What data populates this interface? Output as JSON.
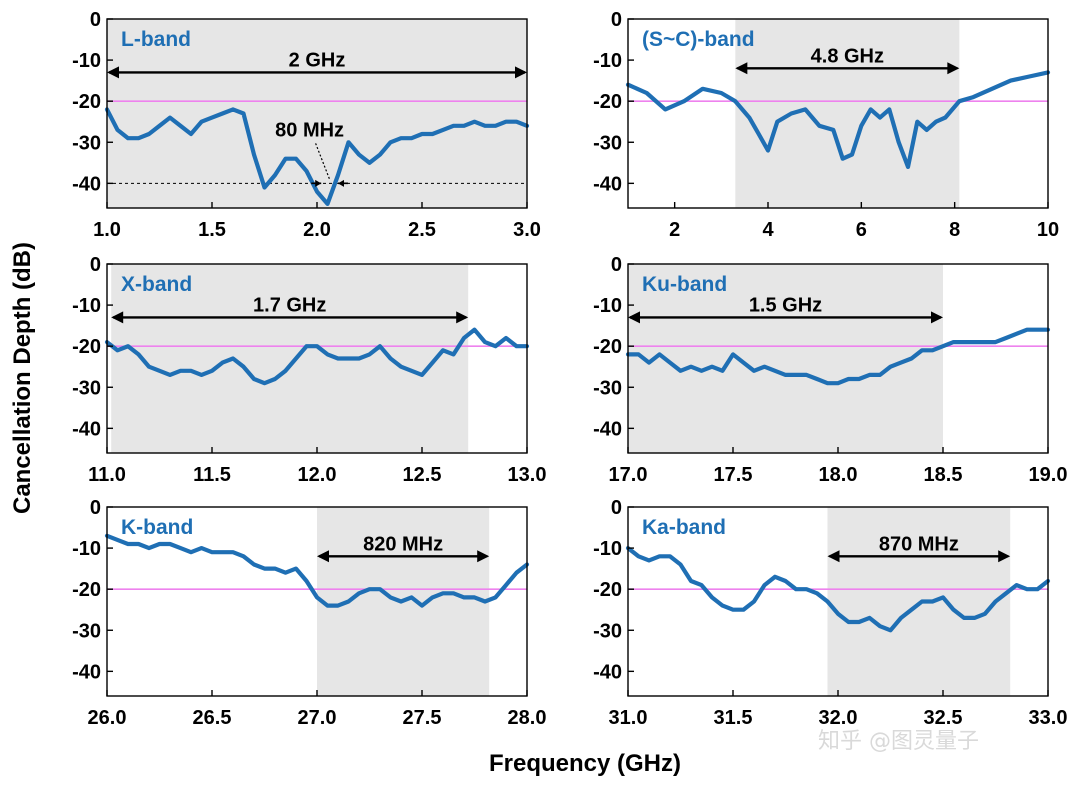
{
  "figure": {
    "ylabel": "Cancellation Depth (dB)",
    "xlabel": "Frequency (GHz)",
    "watermark": "知乎 @图灵量子",
    "colors": {
      "curve": "#1f6fb4",
      "threshold": "#ee82ee",
      "shade": "#e6e6e6",
      "title": "#1f6fb4"
    }
  },
  "chart_data": [
    {
      "type": "line",
      "title": "L-band",
      "xlim": [
        1.0,
        3.0
      ],
      "ylim": [
        -46,
        0
      ],
      "xticks": [
        1.0,
        1.5,
        2.0,
        2.5,
        3.0
      ],
      "xtick_labels": [
        "1.0",
        "1.5",
        "2.0",
        "2.5",
        "3.0"
      ],
      "yticks": [
        0,
        -10,
        -20,
        -30,
        -40
      ],
      "grid": false,
      "threshold": -20,
      "shade": [
        1.0,
        3.0
      ],
      "bandwidth_label": "2 GHz",
      "bandwidth_arrow": [
        1.0,
        3.0
      ],
      "bandwidth_arrow_y": -13,
      "secondary_label": "80 MHz",
      "secondary_arrow": [
        2.02,
        2.1
      ],
      "secondary_line_y": -40,
      "x": [
        1.0,
        1.05,
        1.1,
        1.15,
        1.2,
        1.25,
        1.3,
        1.35,
        1.4,
        1.45,
        1.5,
        1.55,
        1.6,
        1.65,
        1.7,
        1.75,
        1.8,
        1.85,
        1.9,
        1.95,
        2.0,
        2.05,
        2.1,
        2.15,
        2.2,
        2.25,
        2.3,
        2.35,
        2.4,
        2.45,
        2.5,
        2.55,
        2.6,
        2.65,
        2.7,
        2.75,
        2.8,
        2.85,
        2.9,
        2.95,
        3.0
      ],
      "values": [
        -22,
        -27,
        -29,
        -29,
        -28,
        -26,
        -24,
        -26,
        -28,
        -25,
        -24,
        -23,
        -22,
        -23,
        -33,
        -41,
        -38,
        -34,
        -34,
        -37,
        -42,
        -45,
        -38,
        -30,
        -33,
        -35,
        -33,
        -30,
        -29,
        -29,
        -28,
        -28,
        -27,
        -26,
        -26,
        -25,
        -26,
        -26,
        -25,
        -25,
        -26
      ]
    },
    {
      "type": "line",
      "title": "(S~C)-band",
      "xlim": [
        1,
        10
      ],
      "ylim": [
        -46,
        0
      ],
      "xticks": [
        2,
        4,
        6,
        8,
        10
      ],
      "xtick_labels": [
        "2",
        "4",
        "6",
        "8",
        "10"
      ],
      "yticks": [
        0,
        -10,
        -20,
        -30,
        -40
      ],
      "grid": false,
      "threshold": -20,
      "shade": [
        3.3,
        8.1
      ],
      "bandwidth_label": "4.8 GHz",
      "bandwidth_arrow": [
        3.3,
        8.1
      ],
      "bandwidth_arrow_y": -12,
      "x": [
        1.0,
        1.4,
        1.8,
        2.2,
        2.6,
        3.0,
        3.3,
        3.6,
        3.8,
        4.0,
        4.2,
        4.5,
        4.8,
        5.1,
        5.4,
        5.6,
        5.8,
        6.0,
        6.2,
        6.4,
        6.6,
        6.8,
        7.0,
        7.2,
        7.4,
        7.6,
        7.8,
        8.1,
        8.4,
        8.8,
        9.2,
        9.6,
        10.0
      ],
      "values": [
        -16,
        -18,
        -22,
        -20,
        -17,
        -18,
        -20,
        -24,
        -28,
        -32,
        -25,
        -23,
        -22,
        -26,
        -27,
        -34,
        -33,
        -26,
        -22,
        -24,
        -22,
        -30,
        -36,
        -25,
        -27,
        -25,
        -24,
        -20,
        -19,
        -17,
        -15,
        -14,
        -13
      ]
    },
    {
      "type": "line",
      "title": "X-band",
      "xlim": [
        11.0,
        13.0
      ],
      "ylim": [
        -46,
        0
      ],
      "xticks": [
        11.0,
        11.5,
        12.0,
        12.5,
        13.0
      ],
      "xtick_labels": [
        "11.0",
        "11.5",
        "12.0",
        "12.5",
        "13.0"
      ],
      "yticks": [
        0,
        -10,
        -20,
        -30,
        -40
      ],
      "grid": false,
      "threshold": -20,
      "shade": [
        11.02,
        12.72
      ],
      "bandwidth_label": "1.7 GHz",
      "bandwidth_arrow": [
        11.02,
        12.72
      ],
      "bandwidth_arrow_y": -13,
      "x": [
        11.0,
        11.05,
        11.1,
        11.15,
        11.2,
        11.25,
        11.3,
        11.35,
        11.4,
        11.45,
        11.5,
        11.55,
        11.6,
        11.65,
        11.7,
        11.75,
        11.8,
        11.85,
        11.9,
        11.95,
        12.0,
        12.05,
        12.1,
        12.15,
        12.2,
        12.25,
        12.3,
        12.35,
        12.4,
        12.45,
        12.5,
        12.55,
        12.6,
        12.65,
        12.7,
        12.75,
        12.8,
        12.85,
        12.9,
        12.95,
        13.0
      ],
      "values": [
        -19,
        -21,
        -20,
        -22,
        -25,
        -26,
        -27,
        -26,
        -26,
        -27,
        -26,
        -24,
        -23,
        -25,
        -28,
        -29,
        -28,
        -26,
        -23,
        -20,
        -20,
        -22,
        -23,
        -23,
        -23,
        -22,
        -20,
        -23,
        -25,
        -26,
        -27,
        -24,
        -21,
        -22,
        -18,
        -16,
        -19,
        -20,
        -18,
        -20,
        -20
      ]
    },
    {
      "type": "line",
      "title": "Ku-band",
      "xlim": [
        17.0,
        19.0
      ],
      "ylim": [
        -46,
        0
      ],
      "xticks": [
        17.0,
        17.5,
        18.0,
        18.5,
        19.0
      ],
      "xtick_labels": [
        "17.0",
        "17.5",
        "18.0",
        "18.5",
        "19.0"
      ],
      "yticks": [
        0,
        -10,
        -20,
        -30,
        -40
      ],
      "grid": false,
      "threshold": -20,
      "shade": [
        17.0,
        18.5
      ],
      "bandwidth_label": "1.5 GHz",
      "bandwidth_arrow": [
        17.0,
        18.5
      ],
      "bandwidth_arrow_y": -13,
      "x": [
        17.0,
        17.05,
        17.1,
        17.15,
        17.2,
        17.25,
        17.3,
        17.35,
        17.4,
        17.45,
        17.5,
        17.55,
        17.6,
        17.65,
        17.7,
        17.75,
        17.8,
        17.85,
        17.9,
        17.95,
        18.0,
        18.05,
        18.1,
        18.15,
        18.2,
        18.25,
        18.3,
        18.35,
        18.4,
        18.45,
        18.5,
        18.55,
        18.6,
        18.65,
        18.7,
        18.75,
        18.8,
        18.85,
        18.9,
        18.95,
        19.0
      ],
      "values": [
        -22,
        -22,
        -24,
        -22,
        -24,
        -26,
        -25,
        -26,
        -25,
        -26,
        -22,
        -24,
        -26,
        -25,
        -26,
        -27,
        -27,
        -27,
        -28,
        -29,
        -29,
        -28,
        -28,
        -27,
        -27,
        -25,
        -24,
        -23,
        -21,
        -21,
        -20,
        -19,
        -19,
        -19,
        -19,
        -19,
        -18,
        -17,
        -16,
        -16,
        -16
      ]
    },
    {
      "type": "line",
      "title": "K-band",
      "xlim": [
        26.0,
        28.0
      ],
      "ylim": [
        -46,
        0
      ],
      "xticks": [
        26.0,
        26.5,
        27.0,
        27.5,
        28.0
      ],
      "xtick_labels": [
        "26.0",
        "26.5",
        "27.0",
        "27.5",
        "28.0"
      ],
      "yticks": [
        0,
        -10,
        -20,
        -30,
        -40
      ],
      "grid": false,
      "threshold": -20,
      "shade": [
        27.0,
        27.82
      ],
      "bandwidth_label": "820 MHz",
      "bandwidth_arrow": [
        27.0,
        27.82
      ],
      "bandwidth_arrow_y": -12,
      "x": [
        26.0,
        26.05,
        26.1,
        26.15,
        26.2,
        26.25,
        26.3,
        26.35,
        26.4,
        26.45,
        26.5,
        26.55,
        26.6,
        26.65,
        26.7,
        26.75,
        26.8,
        26.85,
        26.9,
        26.95,
        27.0,
        27.05,
        27.1,
        27.15,
        27.2,
        27.25,
        27.3,
        27.35,
        27.4,
        27.45,
        27.5,
        27.55,
        27.6,
        27.65,
        27.7,
        27.75,
        27.8,
        27.85,
        27.9,
        27.95,
        28.0
      ],
      "values": [
        -7,
        -8,
        -9,
        -9,
        -10,
        -9,
        -9,
        -10,
        -11,
        -10,
        -11,
        -11,
        -11,
        -12,
        -14,
        -15,
        -15,
        -16,
        -15,
        -18,
        -22,
        -24,
        -24,
        -23,
        -21,
        -20,
        -20,
        -22,
        -23,
        -22,
        -24,
        -22,
        -21,
        -21,
        -22,
        -22,
        -23,
        -22,
        -19,
        -16,
        -14
      ]
    },
    {
      "type": "line",
      "title": "Ka-band",
      "xlim": [
        31.0,
        33.0
      ],
      "ylim": [
        -46,
        0
      ],
      "xticks": [
        31.0,
        31.5,
        32.0,
        32.5,
        33.0
      ],
      "xtick_labels": [
        "31.0",
        "31.5",
        "32.0",
        "32.5",
        "33.0"
      ],
      "yticks": [
        0,
        -10,
        -20,
        -30,
        -40
      ],
      "grid": false,
      "threshold": -20,
      "shade": [
        31.95,
        32.82
      ],
      "bandwidth_label": "870 MHz",
      "bandwidth_arrow": [
        31.95,
        32.82
      ],
      "bandwidth_arrow_y": -12,
      "x": [
        31.0,
        31.05,
        31.1,
        31.15,
        31.2,
        31.25,
        31.3,
        31.35,
        31.4,
        31.45,
        31.5,
        31.55,
        31.6,
        31.65,
        31.7,
        31.75,
        31.8,
        31.85,
        31.9,
        31.95,
        32.0,
        32.05,
        32.1,
        32.15,
        32.2,
        32.25,
        32.3,
        32.35,
        32.4,
        32.45,
        32.5,
        32.55,
        32.6,
        32.65,
        32.7,
        32.75,
        32.8,
        32.85,
        32.9,
        32.95,
        33.0
      ],
      "values": [
        -10,
        -12,
        -13,
        -12,
        -12,
        -14,
        -18,
        -19,
        -22,
        -24,
        -25,
        -25,
        -23,
        -19,
        -17,
        -18,
        -20,
        -20,
        -21,
        -23,
        -26,
        -28,
        -28,
        -27,
        -29,
        -30,
        -27,
        -25,
        -23,
        -23,
        -22,
        -25,
        -27,
        -27,
        -26,
        -23,
        -21,
        -19,
        -20,
        -20,
        -18
      ]
    }
  ]
}
